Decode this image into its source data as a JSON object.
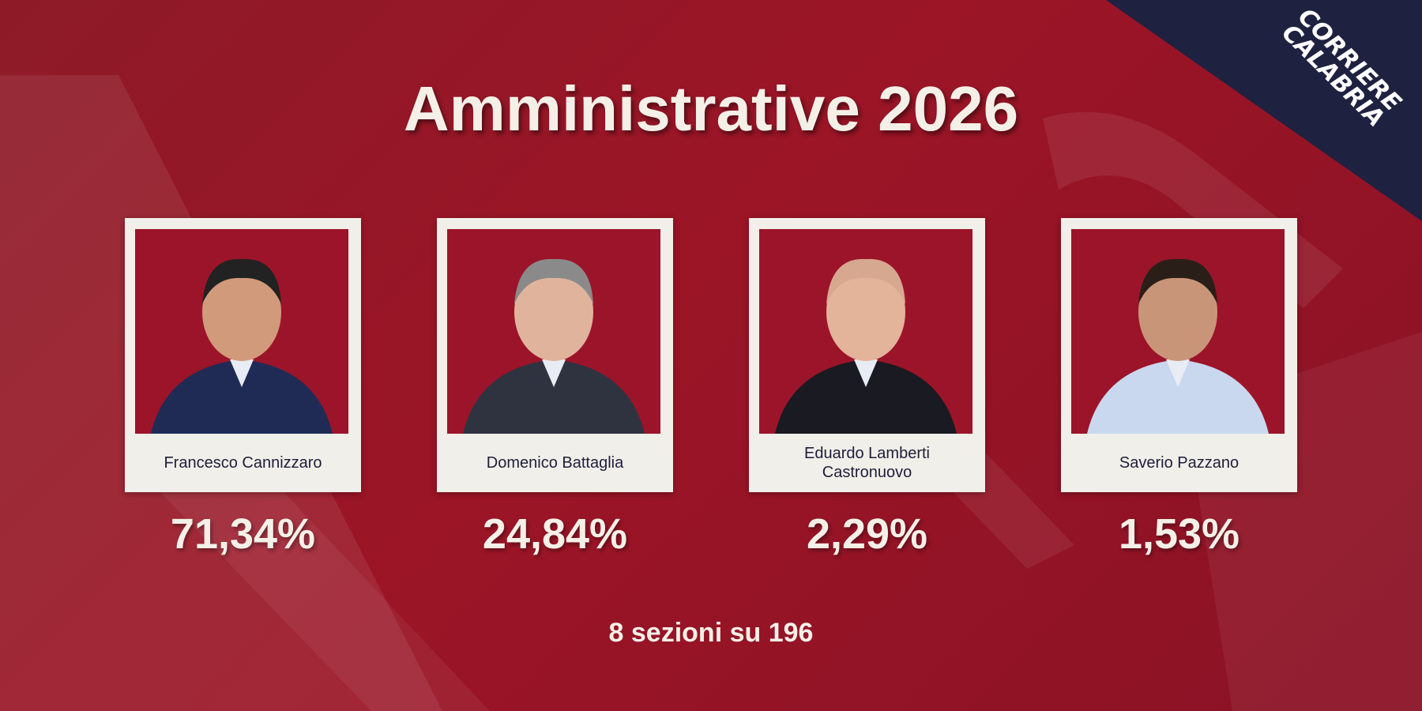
{
  "header": {
    "title": "Amministrative 2026"
  },
  "logo": {
    "line1": "CORRIERE",
    "line2": "CALABRIA"
  },
  "candidates": [
    {
      "name": "Francesco Cannizzaro",
      "result": "71,34%"
    },
    {
      "name": "Domenico Battaglia",
      "result": "24,84%"
    },
    {
      "name": "Eduardo Lamberti Castronuovo",
      "result": "2,29%"
    },
    {
      "name": "Saverio Pazzano",
      "result": "1,53%"
    }
  ],
  "footer": {
    "note": "8 sezioni su 196"
  }
}
